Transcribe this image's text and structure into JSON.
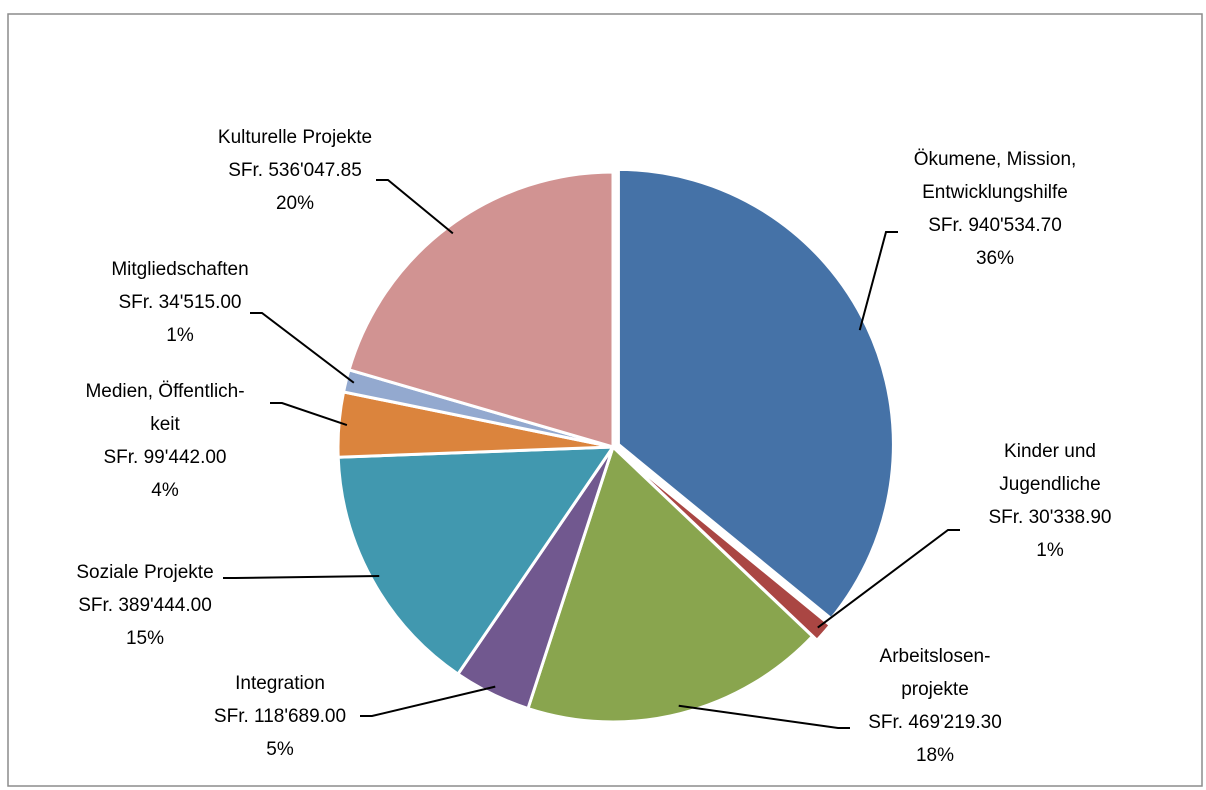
{
  "chart_data": {
    "type": "pie",
    "categories": [
      [
        "Ökumene, Mission,",
        "Entwicklungshilfe"
      ],
      [
        "Kinder und",
        "Jugendliche"
      ],
      [
        "Arbeitslosen-",
        "projekte"
      ],
      [
        "Integration"
      ],
      [
        "Soziale Projekte"
      ],
      [
        "Medien, Öffentlich-",
        "keit"
      ],
      [
        "Mitgliedschaften"
      ],
      [
        "Kulturelle Projekte"
      ]
    ],
    "values": [
      940534.7,
      30338.9,
      469219.3,
      118689.0,
      389444.0,
      99442.0,
      34515.0,
      536047.85
    ],
    "value_labels": [
      "SFr. 940'534.70",
      "SFr. 30'338.90",
      "SFr. 469'219.30",
      "SFr. 118'689.00",
      "SFr. 389'444.00",
      "SFr. 99'442.00",
      "SFr. 34'515.00",
      "SFr. 536'047.85"
    ],
    "percent_labels": [
      "36%",
      "1%",
      "18%",
      "5%",
      "15%",
      "4%",
      "1%",
      "20%"
    ],
    "colors": [
      "#4572a7",
      "#aa4643",
      "#89a54e",
      "#71588f",
      "#4198af",
      "#db843d",
      "#93a9cf",
      "#d19392"
    ]
  }
}
